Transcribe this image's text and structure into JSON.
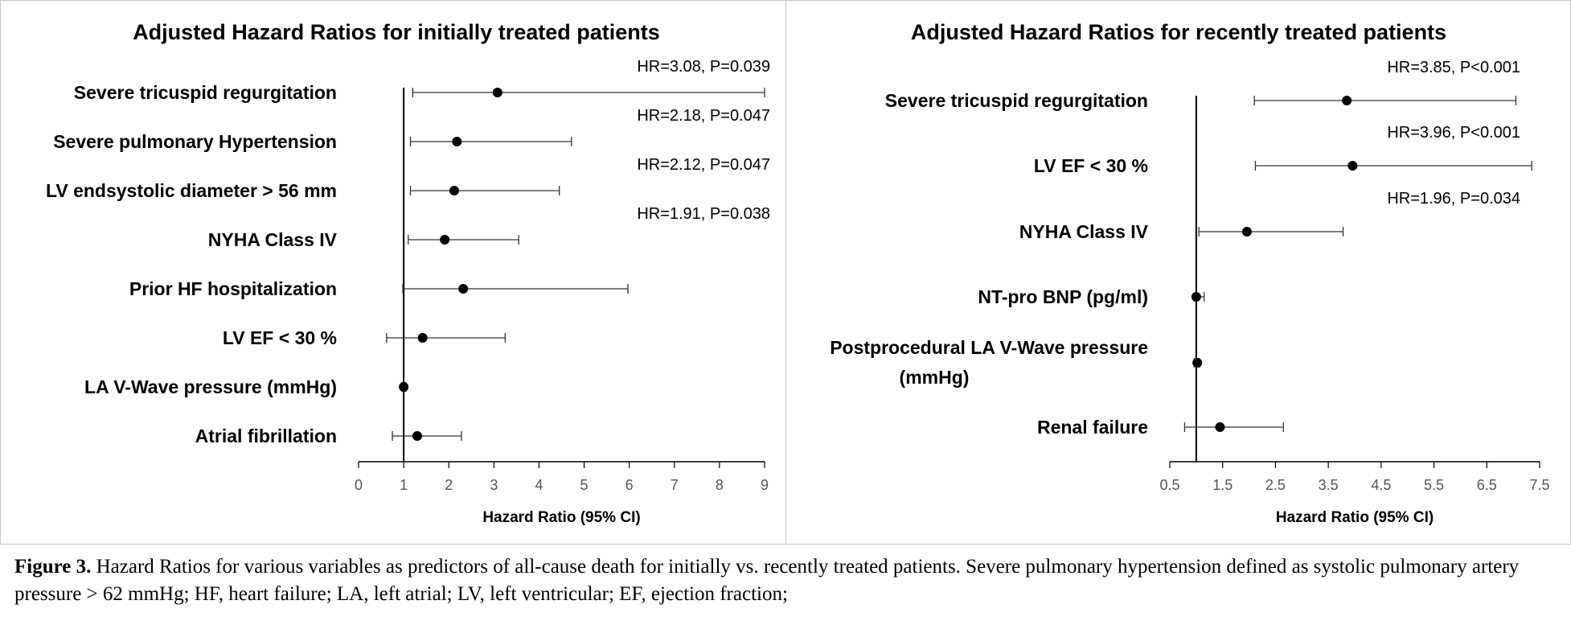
{
  "chart_data": [
    {
      "type": "forest",
      "title": "Adjusted Hazard Ratios for initially treated patients",
      "xlabel": "Hazard Ratio (95% CI)",
      "xlim": [
        0,
        9
      ],
      "xticks": [
        "0",
        "1",
        "2",
        "3",
        "4",
        "5",
        "6",
        "7",
        "8",
        "9"
      ],
      "xtick_values": [
        0,
        1,
        2,
        3,
        4,
        5,
        6,
        7,
        8,
        9
      ],
      "reference_line": 1,
      "rows": [
        {
          "label": "Severe tricuspid regurgitation",
          "hr": 3.08,
          "lower": 1.2,
          "upper": 9.0,
          "annotation": "HR=3.08, P=0.039"
        },
        {
          "label": "Severe pulmonary Hypertension",
          "hr": 2.18,
          "lower": 1.15,
          "upper": 4.72,
          "annotation": "HR=2.18, P=0.047"
        },
        {
          "label": "LV endsystolic diameter > 56 mm",
          "hr": 2.12,
          "lower": 1.15,
          "upper": 4.45,
          "annotation": "HR=2.12, P=0.047"
        },
        {
          "label": "NYHA Class IV",
          "hr": 1.91,
          "lower": 1.1,
          "upper": 3.55,
          "annotation": "HR=1.91, P=0.038"
        },
        {
          "label": "Prior HF hospitalization",
          "hr": 2.32,
          "lower": 0.98,
          "upper": 5.97,
          "annotation": ""
        },
        {
          "label": "LV EF < 30 %",
          "hr": 1.42,
          "lower": 0.62,
          "upper": 3.25,
          "annotation": ""
        },
        {
          "label": "LA V-Wave pressure (mmHg)",
          "hr": 1.0,
          "lower": 0.96,
          "upper": 1.05,
          "annotation": ""
        },
        {
          "label": "Atrial fibrillation",
          "hr": 1.3,
          "lower": 0.75,
          "upper": 2.28,
          "annotation": ""
        }
      ]
    },
    {
      "type": "forest",
      "title": "Adjusted Hazard Ratios for recently treated patients",
      "xlabel": "Hazard Ratio (95% CI)",
      "xlim": [
        0.5,
        7.5
      ],
      "xticks": [
        "0.5",
        "1.5",
        "2.5",
        "3.5",
        "4.5",
        "5.5",
        "6.5",
        "7.5"
      ],
      "xtick_values": [
        0.5,
        1.5,
        2.5,
        3.5,
        4.5,
        5.5,
        6.5,
        7.5
      ],
      "reference_line": 1,
      "rows": [
        {
          "label": "Severe tricuspid regurgitation",
          "label_lines": [
            "Severe tricuspid regurgitation"
          ],
          "hr": 3.85,
          "lower": 2.1,
          "upper": 7.05,
          "annotation": "HR=3.85, P<0.001"
        },
        {
          "label": "LV EF < 30 %",
          "label_lines": [
            "LV EF < 30 %"
          ],
          "hr": 3.96,
          "lower": 2.12,
          "upper": 7.35,
          "annotation": "HR=3.96, P<0.001"
        },
        {
          "label": "NYHA Class IV",
          "label_lines": [
            "NYHA Class IV"
          ],
          "hr": 1.96,
          "lower": 1.05,
          "upper": 3.78,
          "annotation": "HR=1.96, P=0.034"
        },
        {
          "label": "NT-pro BNP (pg/ml)",
          "label_lines": [
            "NT-pro BNP (pg/ml)"
          ],
          "hr": 1.0,
          "lower": 0.98,
          "upper": 1.15,
          "annotation": ""
        },
        {
          "label": "Postprocedural LA V-Wave pressure (mmHg)",
          "label_lines": [
            "Postprocedural LA V-Wave pressure",
            "(mmHg)"
          ],
          "hr": 1.02,
          "lower": 0.96,
          "upper": 1.06,
          "annotation": ""
        },
        {
          "label": "Renal failure",
          "label_lines": [
            "Renal failure"
          ],
          "hr": 1.45,
          "lower": 0.78,
          "upper": 2.65,
          "annotation": ""
        }
      ]
    }
  ],
  "caption": {
    "label": "Figure 3.",
    "text": " Hazard Ratios for various variables as predictors of all-cause death for initially vs. recently treated patients. Severe pulmonary hypertension defined as systolic pulmonary artery pressure > 62 mmHg; HF, heart failure; LA, left atrial; LV, left ventricular; EF, ejection fraction;"
  }
}
